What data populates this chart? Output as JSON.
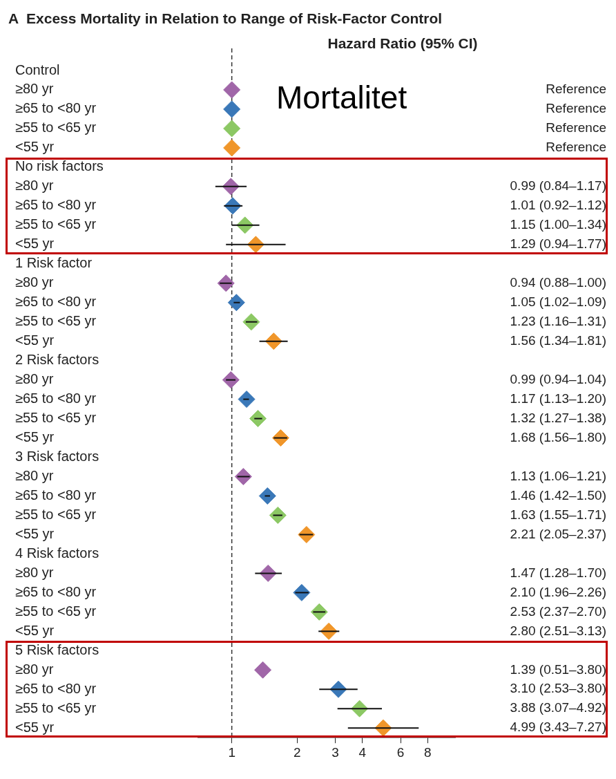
{
  "chart_data": {
    "type": "scatter",
    "orientation": "horizontal",
    "title": "A  Excess Mortality in Relation to Range of Risk-Factor Control",
    "subtitle": "Hazard Ratio (95% CI)",
    "annotations": [
      "Mortalitet"
    ],
    "categories": [
      "Control",
      "≥80 yr",
      "≥65 to <80 yr",
      "≥55 to <65 yr",
      "<55 yr",
      "No risk factors",
      "≥80 yr",
      "≥65 to <80 yr",
      "≥55 to <65 yr",
      "<55 yr",
      "1 Risk factor",
      "≥80 yr",
      "≥65 to <80 yr",
      "≥55 to <65 yr",
      "<55 yr",
      "2 Risk factors",
      "≥80 yr",
      "≥65 to <80 yr",
      "≥55 to <65 yr",
      "<55 yr",
      "3 Risk factors",
      "≥80 yr",
      "≥65 to <80 yr",
      "≥55 to <65 yr",
      "<55 yr",
      "4 Risk factors",
      "≥80 yr",
      "≥65 to <80 yr",
      "≥55 to <65 yr",
      "<55 yr",
      "5 Risk factors",
      "≥80 yr",
      "≥65 to <80 yr",
      "≥55 to <65 yr",
      "<55 yr"
    ],
    "values": [
      null,
      1,
      1,
      1,
      1,
      null,
      0.99,
      1.01,
      1.15,
      1.29,
      null,
      0.94,
      1.05,
      1.23,
      1.56,
      null,
      0.99,
      1.17,
      1.32,
      1.68,
      null,
      1.13,
      1.46,
      1.63,
      2.21,
      null,
      1.47,
      2.1,
      2.53,
      2.8,
      null,
      1.39,
      3.1,
      3.88,
      4.99
    ],
    "errors": [
      null,
      null,
      null,
      null,
      null,
      null,
      [
        0.84,
        1.17
      ],
      [
        0.92,
        1.12
      ],
      [
        1.0,
        1.34
      ],
      [
        0.94,
        1.77
      ],
      null,
      [
        0.88,
        1.0
      ],
      [
        1.02,
        1.09
      ],
      [
        1.16,
        1.31
      ],
      [
        1.34,
        1.81
      ],
      null,
      [
        0.94,
        1.04
      ],
      [
        1.13,
        1.2
      ],
      [
        1.27,
        1.38
      ],
      [
        1.56,
        1.8
      ],
      null,
      [
        1.06,
        1.21
      ],
      [
        1.42,
        1.5
      ],
      [
        1.55,
        1.71
      ],
      [
        2.05,
        2.37
      ],
      null,
      [
        1.28,
        1.7
      ],
      [
        1.96,
        2.26
      ],
      [
        2.37,
        2.7
      ],
      [
        2.51,
        3.13
      ],
      null,
      null,
      [
        2.53,
        3.8
      ],
      [
        3.07,
        4.92
      ],
      [
        3.43,
        7.27
      ]
    ],
    "value_labels": [
      null,
      "Reference",
      "Reference",
      "Reference",
      "Reference",
      null,
      "0.99 (0.84–1.17)",
      "1.01 (0.92–1.12)",
      "1.15 (1.00–1.34)",
      "1.29 (0.94–1.77)",
      null,
      "0.94 (0.88–1.00)",
      "1.05 (1.02–1.09)",
      "1.23 (1.16–1.31)",
      "1.56 (1.34–1.81)",
      null,
      "0.99 (0.94–1.04)",
      "1.17 (1.13–1.20)",
      "1.32 (1.27–1.38)",
      "1.68 (1.56–1.80)",
      null,
      "1.13 (1.06–1.21)",
      "1.46 (1.42–1.50)",
      "1.63 (1.55–1.71)",
      "2.21 (2.05–2.37)",
      null,
      "1.47 (1.28–1.70)",
      "2.10 (1.96–2.26)",
      "2.53 (2.37–2.70)",
      "2.80 (2.51–3.13)",
      null,
      "1.39 (0.51–3.80)",
      "3.10 (2.53–3.80)",
      "3.88 (3.07–4.92)",
      "4.99 (3.43–7.27)"
    ],
    "colors": [
      null,
      "#a066a8",
      "#3a78b8",
      "#8cc864",
      "#f0962a",
      null,
      "#a066a8",
      "#3a78b8",
      "#8cc864",
      "#f0962a",
      null,
      "#a066a8",
      "#3a78b8",
      "#8cc864",
      "#f0962a",
      null,
      "#a066a8",
      "#3a78b8",
      "#8cc864",
      "#f0962a",
      null,
      "#a066a8",
      "#3a78b8",
      "#8cc864",
      "#f0962a",
      null,
      "#a066a8",
      "#3a78b8",
      "#8cc864",
      "#f0962a",
      null,
      "#a066a8",
      "#3a78b8",
      "#8cc864",
      "#f0962a"
    ],
    "log": "x",
    "xlim": [
      0.7,
      10.7
    ],
    "xticks": [
      1,
      2,
      3,
      4,
      6,
      8
    ],
    "ref_lines": [
      {
        "axis": "x",
        "value": 1,
        "color": "#333333",
        "line_style": "dashed"
      }
    ],
    "marker": "diamond",
    "grid": false,
    "legend": false
  }
}
